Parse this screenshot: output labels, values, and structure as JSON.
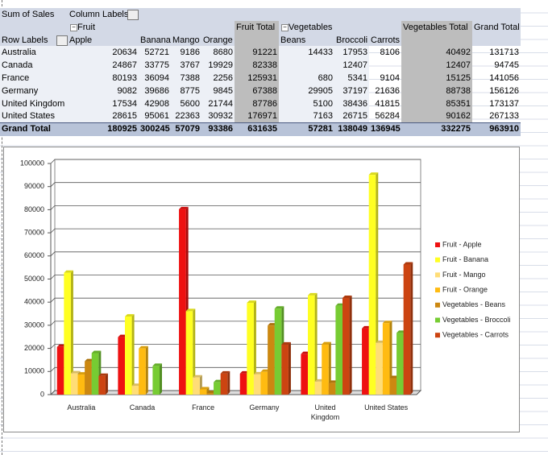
{
  "table": {
    "corner": "Sum of Sales",
    "column_labels": "Column Labels",
    "row_labels": "Row Labels",
    "groups": [
      {
        "name": "Fruit",
        "items": [
          "Apple",
          "Banana",
          "Mango",
          "Orange"
        ],
        "total": "Fruit Total"
      },
      {
        "name": "Vegetables",
        "items": [
          "Beans",
          "Broccoli",
          "Carrots"
        ],
        "total": "Vegetables Total"
      }
    ],
    "grand_total_column": "Grand Total",
    "rows": [
      {
        "label": "Australia",
        "values": [
          20634,
          52721,
          9186,
          8680,
          91221,
          14433,
          17953,
          8106,
          40492,
          131713
        ]
      },
      {
        "label": "Canada",
        "values": [
          24867,
          33775,
          3767,
          19929,
          82338,
          null,
          12407,
          null,
          12407,
          94745
        ]
      },
      {
        "label": "France",
        "values": [
          80193,
          36094,
          7388,
          2256,
          125931,
          680,
          5341,
          9104,
          15125,
          141056
        ]
      },
      {
        "label": "Germany",
        "values": [
          9082,
          39686,
          8775,
          9845,
          67388,
          29905,
          37197,
          21636,
          88738,
          156126
        ]
      },
      {
        "label": "United Kingdom",
        "values": [
          17534,
          42908,
          5600,
          21744,
          87786,
          5100,
          38436,
          41815,
          85351,
          173137
        ]
      },
      {
        "label": "United States",
        "values": [
          28615,
          95061,
          22363,
          30932,
          176971,
          7163,
          26715,
          56284,
          90162,
          267133
        ]
      }
    ],
    "grand_total": {
      "label": "Grand Total",
      "values": [
        180925,
        300245,
        57079,
        93386,
        631635,
        57281,
        138049,
        136945,
        332275,
        963910
      ]
    }
  },
  "chart_data": {
    "type": "bar",
    "categories": [
      "Australia",
      "Canada",
      "France",
      "Germany",
      "United Kingdom",
      "United States"
    ],
    "series": [
      {
        "name": "Fruit - Apple",
        "color": "#ee1111",
        "values": [
          20634,
          24867,
          80193,
          9082,
          17534,
          28615
        ]
      },
      {
        "name": "Fruit - Banana",
        "color": "#ffff22",
        "values": [
          52721,
          33775,
          36094,
          39686,
          42908,
          95061
        ]
      },
      {
        "name": "Fruit - Mango",
        "color": "#ffdd77",
        "values": [
          9186,
          3767,
          7388,
          8775,
          5600,
          22363
        ]
      },
      {
        "name": "Fruit - Orange",
        "color": "#ffbb11",
        "values": [
          8680,
          19929,
          2256,
          9845,
          21744,
          30932
        ]
      },
      {
        "name": "Vegetables - Beans",
        "color": "#cc8811",
        "values": [
          14433,
          null,
          680,
          29905,
          5100,
          7163
        ]
      },
      {
        "name": "Vegetables - Broccoli",
        "color": "#77cc33",
        "values": [
          17953,
          12407,
          5341,
          37197,
          38436,
          26715
        ]
      },
      {
        "name": "Vegetables - Carrots",
        "color": "#cc4411",
        "values": [
          8106,
          null,
          9104,
          21636,
          41815,
          56284
        ]
      }
    ],
    "ylim": [
      0,
      100000
    ],
    "yticks": [
      0,
      10000,
      20000,
      30000,
      40000,
      50000,
      60000,
      70000,
      80000,
      90000,
      100000
    ],
    "grid": true,
    "legend": "right"
  }
}
